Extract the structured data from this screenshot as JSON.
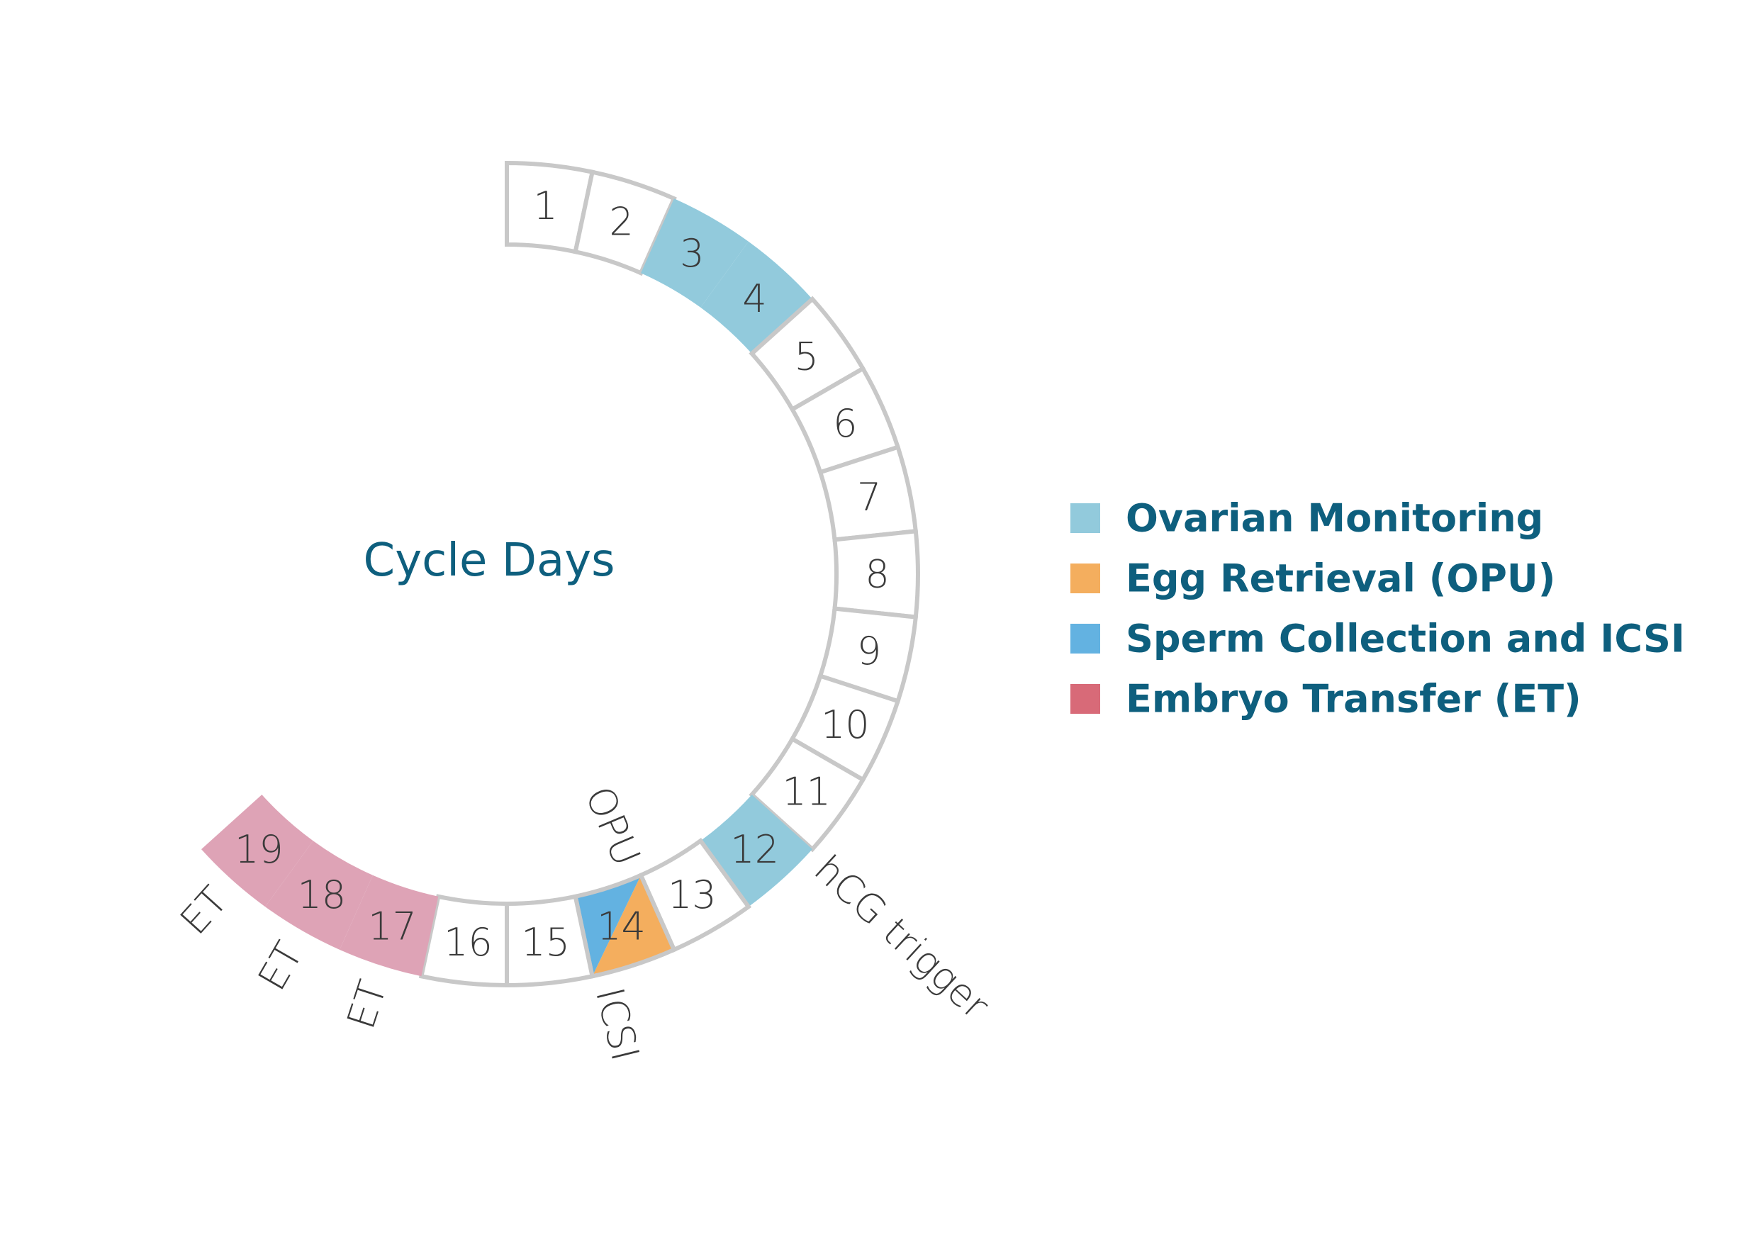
{
  "title": "Cycle Days",
  "colors": {
    "ovarian": "#92cadc",
    "opu": "#f4ae5e",
    "icsi": "#63b2e1",
    "et": "#dea3b6",
    "et_legend": "#d86a78",
    "empty": "#ffffff",
    "stroke": "#c8c8c8",
    "title": "#0e5f7e",
    "text": "#3a3a3a"
  },
  "days": [
    {
      "label": "1",
      "phase": "none"
    },
    {
      "label": "2",
      "phase": "none"
    },
    {
      "label": "3",
      "phase": "ovarian"
    },
    {
      "label": "4",
      "phase": "ovarian"
    },
    {
      "label": "5",
      "phase": "none"
    },
    {
      "label": "6",
      "phase": "none"
    },
    {
      "label": "7",
      "phase": "none"
    },
    {
      "label": "8",
      "phase": "none"
    },
    {
      "label": "9",
      "phase": "none"
    },
    {
      "label": "10",
      "phase": "none"
    },
    {
      "label": "11",
      "phase": "none"
    },
    {
      "label": "12",
      "phase": "ovarian"
    },
    {
      "label": "13",
      "phase": "none"
    },
    {
      "label": "14",
      "phase": "opu_icsi"
    },
    {
      "label": "15",
      "phase": "none"
    },
    {
      "label": "16",
      "phase": "none"
    },
    {
      "label": "17",
      "phase": "et"
    },
    {
      "label": "18",
      "phase": "et"
    },
    {
      "label": "19",
      "phase": "et"
    }
  ],
  "events": [
    {
      "label": "hCG trigger",
      "day": 12
    },
    {
      "label": "OPU",
      "day": 14
    },
    {
      "label": "ICSI",
      "day": 14
    },
    {
      "label": "ET",
      "day": 17
    },
    {
      "label": "ET",
      "day": 18
    },
    {
      "label": "ET",
      "day": 19
    }
  ],
  "legend": [
    {
      "label": "Ovarian Monitoring",
      "color": "#92cadc"
    },
    {
      "label": "Egg Retrieval (OPU)",
      "color": "#f4ae5e"
    },
    {
      "label": "Sperm Collection and ICSI",
      "color": "#63b2e1"
    },
    {
      "label": "Embryo Transfer (ET)",
      "color": "#d86a78"
    }
  ]
}
